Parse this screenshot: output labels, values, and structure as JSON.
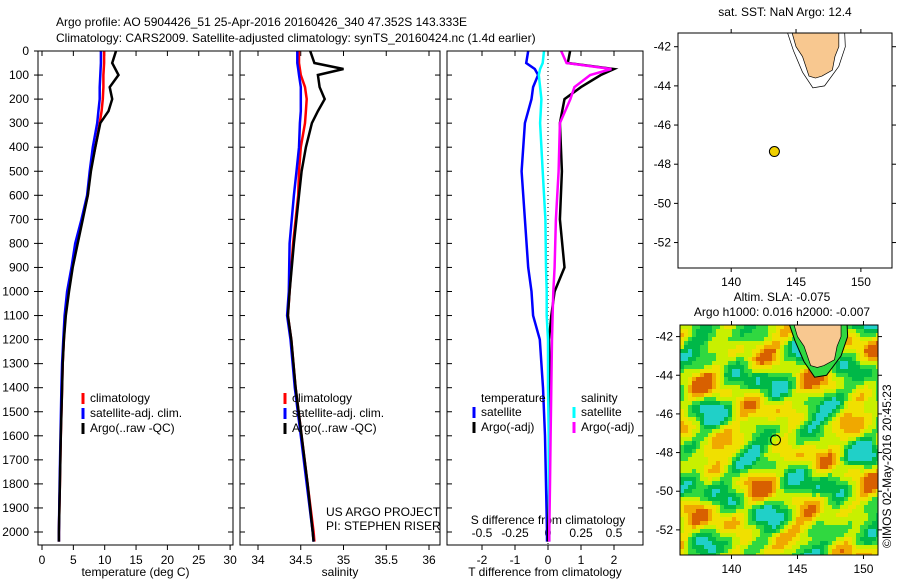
{
  "header": {
    "line1": "Argo profile: AO 5904426_51 25-Apr-2016 20160426_340 47.352S 143.333E",
    "line2": "Climatology: CARS2009. Satellite-adjusted climatology: synTS_20160424.nc (1.4d earlier)"
  },
  "colors": {
    "clim": "#ff0000",
    "sat": "#0000ff",
    "argo": "#000000",
    "sat_s": "#00ffff",
    "argo_s": "#ff00ff",
    "land": "#f8c890",
    "dot": "#f0d000"
  },
  "chart_data": [
    {
      "type": "line",
      "id": "temperature",
      "xlabel": "temperature (deg C)",
      "xlim": [
        -0.6,
        30.5
      ],
      "xticks": [
        0,
        5,
        10,
        15,
        20,
        25,
        30
      ],
      "ylim": [
        0,
        2055
      ],
      "yticks": [
        0,
        100,
        200,
        300,
        400,
        500,
        600,
        700,
        800,
        900,
        1000,
        1100,
        1200,
        1300,
        1400,
        1500,
        1600,
        1700,
        1800,
        1900,
        2000
      ],
      "depth": [
        0,
        50,
        100,
        150,
        200,
        250,
        300,
        400,
        500,
        600,
        700,
        800,
        900,
        1000,
        1100,
        1200,
        1300,
        1400,
        1600,
        1800,
        2000,
        2040
      ],
      "series": [
        {
          "name": "climatology",
          "color": "#ff0000",
          "values": [
            9.9,
            9.9,
            9.8,
            9.8,
            9.7,
            9.5,
            9.2,
            8.5,
            7.7,
            7.3,
            6.4,
            5.4,
            4.8,
            4.1,
            3.7,
            3.5,
            3.3,
            3.2,
            3.0,
            2.85,
            2.7,
            2.7
          ]
        },
        {
          "name": "satellite-adj. clim.",
          "color": "#0000ff",
          "values": [
            9.4,
            9.4,
            9.3,
            9.2,
            9.2,
            9.0,
            8.8,
            8.1,
            7.6,
            7.2,
            6.3,
            5.3,
            4.7,
            4.0,
            3.6,
            3.4,
            3.2,
            3.1,
            2.95,
            2.8,
            2.7,
            2.7
          ]
        },
        {
          "name": "Argo(..raw -QC)",
          "color": "#000000",
          "values": [
            11.8,
            11.2,
            12.2,
            10.8,
            11.2,
            10.6,
            9.3,
            8.5,
            7.8,
            7.3,
            6.5,
            5.7,
            4.9,
            4.3,
            3.8,
            3.5,
            3.3,
            3.2,
            3.0,
            2.85,
            2.7,
            2.7
          ]
        }
      ],
      "legend": [
        "climatology",
        "satellite-adj. clim.",
        "Argo(..raw -QC)"
      ]
    },
    {
      "type": "line",
      "id": "salinity",
      "xlabel": "salinity",
      "xlim": [
        33.78,
        36.12
      ],
      "xticks": [
        34,
        34.5,
        35,
        35.5,
        36
      ],
      "depth": [
        0,
        50,
        75,
        100,
        150,
        200,
        250,
        300,
        400,
        500,
        600,
        800,
        1000,
        1100,
        1200,
        1400,
        1600,
        1800,
        2000,
        2040
      ],
      "series": [
        {
          "name": "climatology",
          "color": "#ff0000",
          "values": [
            34.48,
            34.48,
            34.49,
            34.5,
            34.55,
            34.57,
            34.56,
            34.55,
            34.5,
            34.48,
            34.47,
            34.41,
            34.37,
            34.35,
            34.39,
            34.44,
            34.51,
            34.58,
            34.65,
            34.66
          ]
        },
        {
          "name": "satellite-adj. clim.",
          "color": "#0000ff",
          "values": [
            34.46,
            34.46,
            34.47,
            34.48,
            34.5,
            34.5,
            34.5,
            34.49,
            34.48,
            34.45,
            34.42,
            34.37,
            34.36,
            34.34,
            34.38,
            34.43,
            34.5,
            34.57,
            34.64,
            34.65
          ]
        },
        {
          "name": "Argo(..raw -QC)",
          "color": "#000000",
          "values": [
            34.61,
            34.66,
            35.0,
            34.7,
            34.72,
            34.78,
            34.7,
            34.63,
            34.56,
            34.51,
            34.48,
            34.42,
            34.37,
            34.35,
            34.39,
            34.44,
            34.51,
            34.58,
            34.64,
            34.65
          ]
        }
      ],
      "legend": [
        "climatology",
        "satellite-adj. clim.",
        "Argo(..raw -QC)"
      ],
      "annotation": [
        "US ARGO PROJECT",
        "PI: STEPHEN RISER"
      ]
    },
    {
      "type": "line",
      "id": "difference",
      "xlabel": "T difference from climatology",
      "xlabel2": "S difference from climatology",
      "xlim": [
        -3.05,
        2.9
      ],
      "xticks": [
        -2,
        -1,
        0,
        1,
        2
      ],
      "xticks2": [
        -0.5,
        -0.25,
        0,
        0.25,
        0.5
      ],
      "xticklabels2": [
        "-0.5",
        "-0.25",
        "0",
        "0.25",
        "0.5"
      ],
      "depth": [
        0,
        50,
        75,
        100,
        150,
        200,
        300,
        500,
        700,
        900,
        1000,
        1100,
        1200,
        1400,
        1600,
        1800,
        2000,
        2040
      ],
      "series": [
        {
          "name": "temperature satellite",
          "axis": "T",
          "color": "#0000ff",
          "values": [
            -0.6,
            -0.66,
            -0.4,
            -0.3,
            -0.45,
            -0.5,
            -0.7,
            -0.8,
            -0.7,
            -0.6,
            -0.5,
            -0.45,
            -0.25,
            -0.15,
            -0.09,
            -0.06,
            -0.03,
            -0.03
          ]
        },
        {
          "name": "temperature Argo(-adj)",
          "axis": "T",
          "color": "#000000",
          "values": [
            0.67,
            0.6,
            2.0,
            1.6,
            1.0,
            0.5,
            0.36,
            0.42,
            0.36,
            0.5,
            0.2,
            0.1,
            0.03,
            0.06,
            0.05,
            0.03,
            0.0,
            0.0
          ]
        },
        {
          "name": "salinity satellite",
          "axis": "S",
          "color": "#00ffff",
          "values": [
            -0.03,
            -0.04,
            -0.06,
            -0.07,
            -0.06,
            -0.05,
            -0.06,
            -0.04,
            -0.02,
            -0.015,
            -0.01,
            -0.01,
            0.0,
            0.0,
            0.005,
            0.005,
            0.01,
            0.01
          ]
        },
        {
          "name": "salinity Argo(-adj)",
          "axis": "S",
          "color": "#ff00ff",
          "values": [
            0.1,
            0.14,
            0.48,
            0.32,
            0.2,
            0.17,
            0.09,
            0.08,
            0.06,
            0.05,
            0.04,
            0.035,
            0.03,
            0.025,
            0.02,
            0.015,
            0.01,
            0.01
          ]
        }
      ],
      "legend_headers": [
        "temperature",
        "salinity"
      ],
      "legend": [
        "satellite",
        "Argo(-adj)",
        "satellite",
        "Argo(-adj)"
      ]
    },
    {
      "type": "map",
      "id": "sst-map",
      "title": "sat. SST: NaN Argo: 12.4",
      "xticks": [
        140,
        145,
        150
      ],
      "yticks": [
        -42,
        -44,
        -46,
        -48,
        -50,
        -52
      ],
      "profile_location": {
        "lon": 143.333,
        "lat": -47.352
      }
    },
    {
      "type": "heatmap",
      "id": "sla-map",
      "title": "Altim. SLA: -0.075",
      "subtitle": "Argo h1000: 0.016 h2000: -0.007",
      "xticks": [
        140,
        145,
        150
      ],
      "yticks": [
        -42,
        -44,
        -46,
        -48,
        -50,
        -52
      ],
      "profile_location": {
        "lon": 143.333,
        "lat": -47.352
      }
    }
  ],
  "footer": {
    "stamp": "©IMOS 02-May-2016 20:45:23"
  }
}
